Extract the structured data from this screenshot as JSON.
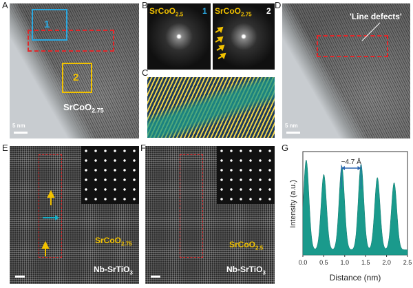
{
  "panels": {
    "A": {
      "letter": "A",
      "box1_label": "1",
      "box2_label": "2",
      "material": "SrCoO",
      "material_sub": "2.75",
      "scale": "5 nm"
    },
    "B": {
      "letter": "B",
      "left_material": "SrCoO",
      "left_sub": "2.5",
      "left_num": "1",
      "right_material": "SrCoO",
      "right_sub": "2.75",
      "right_num": "2"
    },
    "C": {
      "letter": "C"
    },
    "D": {
      "letter": "D",
      "annotation": "'Line defects'",
      "scale": "5 nm"
    },
    "E": {
      "letter": "E",
      "material": "SrCoO",
      "material_sub": "2.75",
      "substrate": "Nb-SrTiO",
      "substrate_sub": "3"
    },
    "F": {
      "letter": "F",
      "material": "SrCoO",
      "material_sub": "2.5",
      "substrate": "Nb-SrTiO",
      "substrate_sub": "3"
    },
    "G": {
      "letter": "G"
    }
  },
  "colors": {
    "teal": "#1a9a8c",
    "yellow": "#f2c200",
    "blue": "#2aa8e0",
    "red": "#e0282a"
  },
  "chart_data": {
    "type": "area",
    "title": "",
    "xlabel": "Distance (nm)",
    "ylabel": "Intensity (a.u.)",
    "xlim": [
      0,
      2.5
    ],
    "xticks": [
      "0.0",
      "0.5",
      "1.0",
      "1.5",
      "2.0",
      "2.5"
    ],
    "annotation": "~4.7 Å",
    "annotation_range": [
      0.92,
      1.39
    ],
    "peaks": [
      {
        "x": 0.08,
        "y": 0.92
      },
      {
        "x": 0.5,
        "y": 0.78
      },
      {
        "x": 0.93,
        "y": 0.86
      },
      {
        "x": 1.39,
        "y": 0.88
      },
      {
        "x": 1.78,
        "y": 0.75
      },
      {
        "x": 2.18,
        "y": 0.7
      }
    ],
    "baseline": 0.05
  }
}
